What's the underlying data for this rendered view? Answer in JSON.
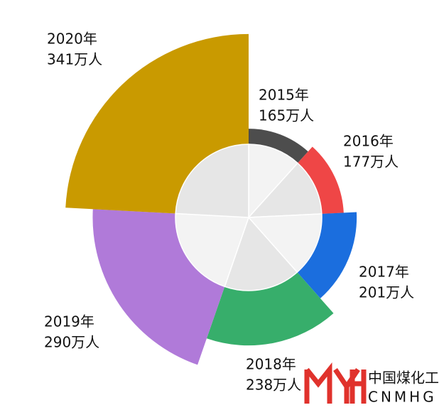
{
  "chart_data": {
    "type": "rose",
    "categories": [
      "2015年",
      "2016年",
      "2017年",
      "2018年",
      "2019年",
      "2020年"
    ],
    "values": [
      165,
      177,
      201,
      238,
      290,
      341
    ],
    "value_labels": [
      "165万人",
      "177万人",
      "201万人",
      "238万人",
      "290万人",
      "341万人"
    ],
    "colors": [
      "#4d4d4d",
      "#ef4646",
      "#1b6ede",
      "#37ae6b",
      "#b07ad9",
      "#c99a00"
    ]
  },
  "logo": {
    "name": "中国煤化工",
    "code": "CNMHG"
  }
}
